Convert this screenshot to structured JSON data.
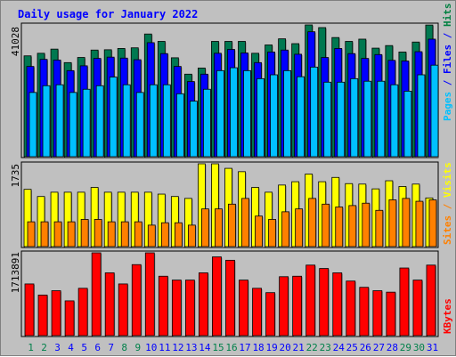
{
  "chart_data": [
    {
      "type": "bar",
      "title": "Daily usage for January 2022",
      "categories": [
        "1",
        "2",
        "3",
        "4",
        "5",
        "6",
        "7",
        "8",
        "9",
        "10",
        "11",
        "12",
        "13",
        "14",
        "15",
        "16",
        "17",
        "18",
        "19",
        "20",
        "21",
        "22",
        "23",
        "24",
        "25",
        "26",
        "27",
        "28",
        "29",
        "30",
        "31"
      ],
      "ylabel_parts": [
        {
          "text": "Pages",
          "color": "#00c0ff"
        },
        {
          "text": " / ",
          "color": "#0000ff"
        },
        {
          "text": "Files",
          "color": "#0000ff"
        },
        {
          "text": " / ",
          "color": "#0000ff"
        },
        {
          "text": "Hits",
          "color": "#008040"
        }
      ],
      "ymax_label": "41028",
      "ylim": [
        0,
        41028
      ],
      "series": [
        {
          "name": "Hits",
          "color": "#007850",
          "values": [
            31400,
            32200,
            33500,
            29300,
            30900,
            33200,
            33300,
            33700,
            33900,
            38200,
            35900,
            30800,
            25700,
            27600,
            35900,
            35900,
            35900,
            32200,
            34800,
            36700,
            35200,
            41028,
            40200,
            37100,
            35900,
            36600,
            33800,
            34600,
            32600,
            35700,
            41000
          ]
        },
        {
          "name": "Files",
          "color": "#0000ff",
          "values": [
            28100,
            30300,
            30100,
            26800,
            28300,
            30600,
            31000,
            30700,
            30200,
            35500,
            32100,
            28100,
            23400,
            25700,
            32200,
            33400,
            32300,
            29300,
            32600,
            33200,
            31900,
            38900,
            30900,
            33700,
            32100,
            30600,
            31800,
            30000,
            29800,
            32700,
            36600
          ]
        },
        {
          "name": "Pages",
          "color": "#00c0ff",
          "values": [
            20000,
            22100,
            22400,
            20000,
            21000,
            22100,
            24800,
            22400,
            20000,
            22400,
            22400,
            19600,
            17300,
            21000,
            26800,
            27700,
            26800,
            24300,
            25500,
            26800,
            24900,
            27900,
            23200,
            23200,
            24300,
            23500,
            23500,
            22400,
            20400,
            25500,
            28500
          ]
        },
        {
          "name": "Visits",
          "color": "#ffff00",
          "values": [
            1200,
            1050,
            1140,
            1140,
            1140,
            1240,
            1140,
            1140,
            1140,
            1140,
            1100,
            1050,
            1010,
            1735,
            1735,
            1640,
            1570,
            1240,
            1140,
            1290,
            1360,
            1520,
            1360,
            1450,
            1320,
            1310,
            1210,
            1380,
            1260,
            1310,
            1020
          ]
        },
        {
          "name": "Sites",
          "color": "#ff8000",
          "values": [
            520,
            520,
            520,
            520,
            570,
            570,
            520,
            520,
            520,
            450,
            500,
            500,
            450,
            790,
            790,
            890,
            1010,
            640,
            570,
            730,
            790,
            1010,
            890,
            830,
            860,
            910,
            760,
            980,
            1010,
            950,
            980
          ]
        },
        {
          "name": "KBytes",
          "color": "#ff0000",
          "values": [
            1070000,
            840000,
            930000,
            720000,
            980000,
            1713891,
            1300000,
            1070000,
            1470000,
            1713891,
            1230000,
            1150000,
            1150000,
            1300000,
            1630000,
            1560000,
            1150000,
            980000,
            890000,
            1220000,
            1230000,
            1460000,
            1390000,
            1300000,
            1130000,
            1000000,
            930000,
            900000,
            1400000,
            1150000,
            1460000
          ]
        }
      ]
    }
  ],
  "panels": {
    "top": {
      "max_label": "41028",
      "series_names": [
        "Hits",
        "Files",
        "Pages"
      ]
    },
    "middle": {
      "max_label": "1735",
      "max": 1735,
      "series_names": [
        "Visits",
        "Sites"
      ]
    },
    "bottom": {
      "max_label": "1713891",
      "max": 1713891,
      "series_names": [
        "KBytes"
      ]
    }
  },
  "right_labels": {
    "middle": [
      {
        "text": "Sites",
        "color": "#ff8000"
      },
      {
        "text": " / ",
        "color": "#ff8000"
      },
      {
        "text": "Visits",
        "color": "#ffff00"
      }
    ],
    "bottom": [
      {
        "text": "KBytes",
        "color": "#ff0000"
      }
    ]
  },
  "colors": {
    "background": "#c0c0c0",
    "plot_border": "#000000",
    "title": "#0000ff",
    "weekday_label": "#0000ff",
    "weekend_label": "#00804a",
    "grid": "#808080"
  },
  "weekend_days": [
    "1",
    "2",
    "8",
    "9",
    "15",
    "16",
    "22",
    "23",
    "29",
    "30"
  ]
}
